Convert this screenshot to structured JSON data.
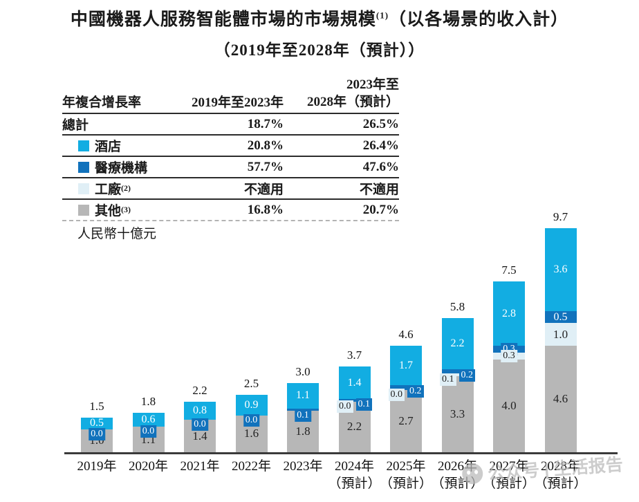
{
  "title": {
    "line1_main": "中國機器人服務智能體市場的市場規模",
    "line1_sup": "(1)",
    "line1_rest": "（以各場景的收入計）",
    "line2": "（2019年至2028年（預計））"
  },
  "table": {
    "header": {
      "col1": "年複合增長率",
      "col2": "2019年至2023年",
      "col3_line1": "2023年至",
      "col3_line2": "2028年（預計）"
    },
    "rows": [
      {
        "label": "總計",
        "sup": "",
        "swatch": null,
        "col2": "18.7%",
        "col3": "26.5%"
      },
      {
        "label": "酒店",
        "sup": "",
        "swatch": "#12ade2",
        "col2": "20.8%",
        "col3": "26.4%"
      },
      {
        "label": "醫療機構",
        "sup": "",
        "swatch": "#1172bc",
        "col2": "57.7%",
        "col3": "47.6%"
      },
      {
        "label": "工廠",
        "sup": "(2)",
        "swatch": "#e0eff6",
        "col2": "不適用",
        "col3": "不適用"
      },
      {
        "label": "其他",
        "sup": "(3)",
        "swatch": "#b7b7b7",
        "col2": "16.8%",
        "col3": "20.7%"
      }
    ]
  },
  "unit_label": "人民幣十億元",
  "watermark": {
    "text": "公众号 | 生活报告"
  },
  "chart_data": {
    "type": "bar",
    "stacked": true,
    "title": "中國機器人服務智能體市場的市場規模（以各場景的收入計）（2019年至2028年（預計））",
    "ylabel": "人民幣十億元",
    "ylim": [
      0,
      10
    ],
    "categories": [
      "2019年",
      "2020年",
      "2021年",
      "2022年",
      "2023年",
      "2024年",
      "2025年",
      "2026年",
      "2027年",
      "2028年"
    ],
    "forecast_suffix": "（預計）",
    "forecast_from_index": 5,
    "series": [
      {
        "key": "other",
        "name": "其他",
        "color": "#b7b7b7",
        "text_color": "#222222",
        "values": [
          1.0,
          1.1,
          1.4,
          1.6,
          1.8,
          2.2,
          2.7,
          3.3,
          4.0,
          4.6
        ]
      },
      {
        "key": "factory",
        "name": "工廠",
        "color": "#e0eff6",
        "text_color": "#222222",
        "values": [
          null,
          null,
          null,
          null,
          null,
          0.0,
          0.0,
          0.1,
          0.3,
          1.0
        ]
      },
      {
        "key": "medical",
        "name": "醫療機構",
        "color": "#1172bc",
        "text_color": "#ffffff",
        "values": [
          0.0,
          0.0,
          0.0,
          0.0,
          0.1,
          0.1,
          0.2,
          0.2,
          0.3,
          0.5
        ]
      },
      {
        "key": "hotel",
        "name": "酒店",
        "color": "#12ade2",
        "text_color": "#ffffff",
        "values": [
          0.5,
          0.6,
          0.8,
          0.9,
          1.1,
          1.4,
          1.7,
          2.2,
          2.8,
          3.6
        ]
      }
    ],
    "totals": [
      1.5,
      1.8,
      2.2,
      2.5,
      3.0,
      3.7,
      4.6,
      5.8,
      7.5,
      9.7
    ],
    "annotations": {
      "medical_label_mode": [
        "chip-below",
        "chip-below",
        "chip-below",
        "chip-below",
        "chip-below",
        "chip-right",
        "chip-right",
        "chip-right",
        "chip-on",
        "inside"
      ],
      "factory_label_mode": [
        "none",
        "none",
        "none",
        "none",
        "none",
        "chip-left",
        "chip-left",
        "chip-left",
        "chip-below-medical",
        "inside"
      ]
    },
    "cagr_table": {
      "columns": [
        "2019年至2023年",
        "2023年至2028年（預計）"
      ],
      "rows": [
        {
          "name": "總計",
          "v1": "18.7%",
          "v2": "26.5%"
        },
        {
          "name": "酒店",
          "v1": "20.8%",
          "v2": "26.4%"
        },
        {
          "name": "醫療機構",
          "v1": "57.7%",
          "v2": "47.6%"
        },
        {
          "name": "工廠",
          "v1": "不適用",
          "v2": "不適用"
        },
        {
          "name": "其他",
          "v1": "16.8%",
          "v2": "20.7%"
        }
      ]
    }
  }
}
